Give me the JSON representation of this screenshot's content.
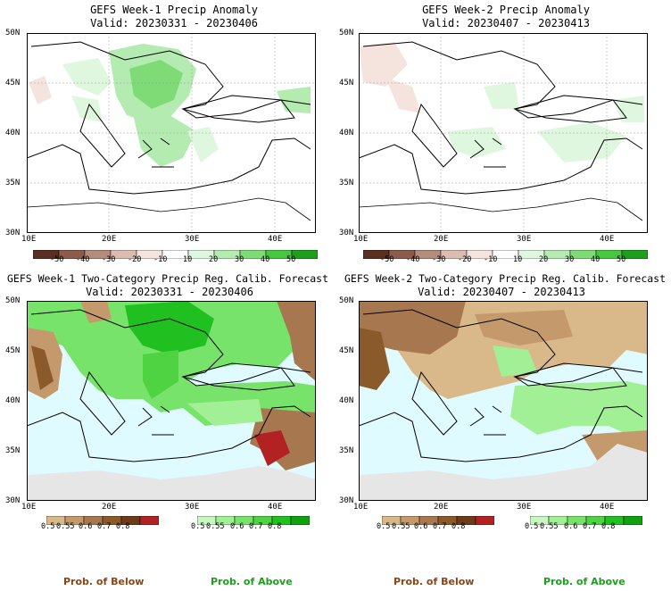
{
  "panels": [
    {
      "title": "GEFS Week-1 Precip Anomaly",
      "valid": "Valid: 20230331 - 20230406"
    },
    {
      "title": "GEFS Week-2 Precip Anomaly",
      "valid": "Valid: 20230407 - 20230413"
    },
    {
      "title": "GEFS Week-1 Two-Category Precip Reg. Calib. Forecast",
      "valid": "Valid: 20230331 - 20230406"
    },
    {
      "title": "GEFS Week-2 Two-Category Precip Reg. Calib. Forecast",
      "valid": "Valid: 20230407 - 20230413"
    }
  ],
  "axes": {
    "lat_labels": [
      "50N",
      "45N",
      "40N",
      "35N",
      "30N"
    ],
    "lon_labels": [
      "10E",
      "20E",
      "30E",
      "40E"
    ]
  },
  "anomaly_colorbar": {
    "ticks": [
      "-50",
      "-40",
      "-30",
      "-20",
      "-10",
      "10",
      "20",
      "30",
      "40",
      "50"
    ],
    "colors": [
      "#5a2f21",
      "#8c5b4a",
      "#b58b7c",
      "#dcbbb0",
      "#f4e4dd",
      "#ffffff",
      "#dff7df",
      "#b3ebb0",
      "#7edb76",
      "#47c73f",
      "#1f9e1c"
    ]
  },
  "prob_colorbar": {
    "below_ticks": [
      "0.5",
      "0.55",
      "0.6",
      "0.7",
      "0.8"
    ],
    "above_ticks": [
      "0.5",
      "0.55",
      "0.6",
      "0.7",
      "0.8"
    ],
    "below_colors": [
      "#d9b98a",
      "#c49a6c",
      "#a7784f",
      "#8b5a2b",
      "#6e3b1a",
      "#b22222"
    ],
    "above_colors": [
      "#c9f7c0",
      "#a2f096",
      "#78e36a",
      "#4fd343",
      "#20c020",
      "#10a010"
    ],
    "below_label": "Prob. of Below",
    "above_label": "Prob. of Above"
  },
  "colors": {
    "sea": "#e0fbff",
    "land": "#ffffff",
    "no_data": "#e6e6e6",
    "below_label": "#8b4513",
    "above_label": "#1aa01a"
  }
}
